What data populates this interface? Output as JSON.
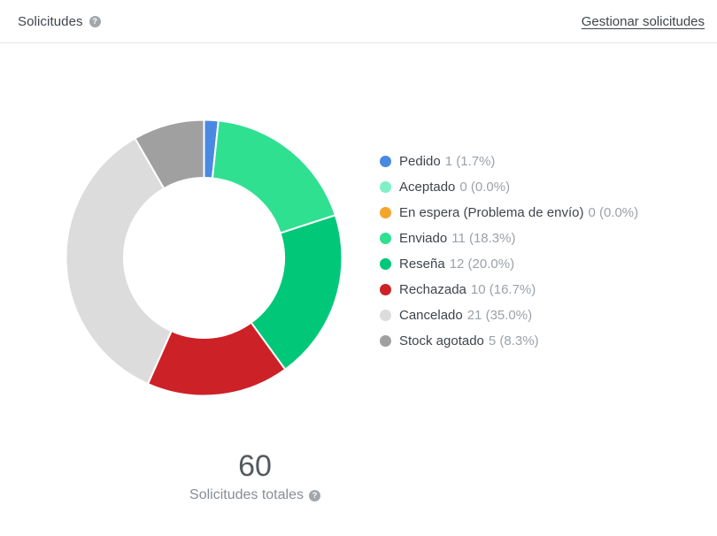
{
  "header": {
    "title": "Solicitudes",
    "manage_link": "Gestionar solicitudes"
  },
  "icons": {
    "help": "?"
  },
  "chart_data": {
    "type": "pie",
    "subtype": "donut",
    "title": "Solicitudes",
    "total": 60,
    "total_label": "Solicitudes totales",
    "legend_position": "right",
    "start_angle_deg": -90,
    "inner_radius_ratio": 0.58,
    "segments": [
      {
        "label": "Pedido",
        "value": 1,
        "pct": "1.7%",
        "color": "#4a89e2"
      },
      {
        "label": "Aceptado",
        "value": 0,
        "pct": "0.0%",
        "color": "#7ff0c5"
      },
      {
        "label": "En espera (Problema de envío)",
        "value": 0,
        "pct": "0.0%",
        "color": "#f5a62a"
      },
      {
        "label": "Enviado",
        "value": 11,
        "pct": "18.3%",
        "color": "#2fe091"
      },
      {
        "label": "Reseña",
        "value": 12,
        "pct": "20.0%",
        "color": "#00c878"
      },
      {
        "label": "Rechazada",
        "value": 10,
        "pct": "16.7%",
        "color": "#cc2127"
      },
      {
        "label": "Cancelado",
        "value": 21,
        "pct": "35.0%",
        "color": "#dcdcdc"
      },
      {
        "label": "Stock agotado",
        "value": 5,
        "pct": "8.3%",
        "color": "#a0a0a0"
      }
    ]
  }
}
